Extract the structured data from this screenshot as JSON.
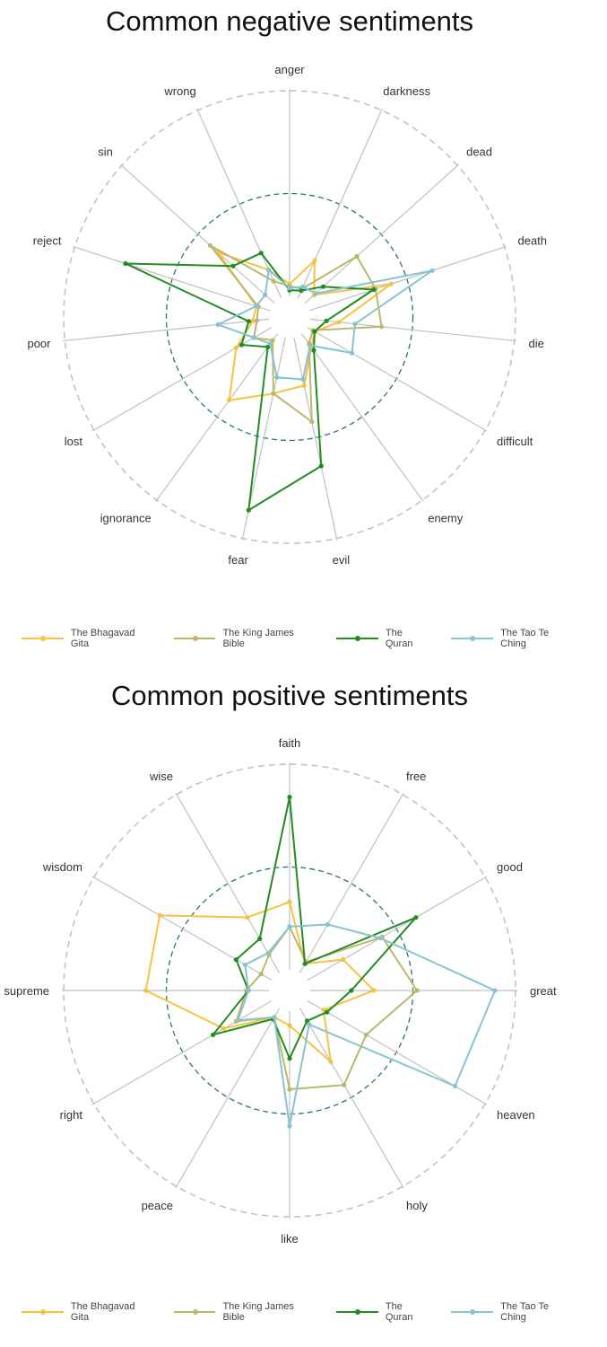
{
  "colors": {
    "The Bhagavad Gita": "#f5c242",
    "The King James Bible": "#bdb76b",
    "The Quran": "#228b22",
    "The Tao Te Ching": "#87c3d0",
    "grid": "#c0c0c0",
    "mean_circle": "#2a7085"
  },
  "chart_data": [
    {
      "type": "radar",
      "title": "Common negative sentiments",
      "categories": [
        "anger",
        "darkness",
        "dead",
        "death",
        "die",
        "difficult",
        "enemy",
        "evil",
        "fear",
        "ignorance",
        "lost",
        "poor",
        "reject",
        "sin",
        "wrong"
      ],
      "rlim": [
        0,
        1
      ],
      "series": [
        {
          "name": "The Bhagavad Gita",
          "values": [
            0.06,
            0.2,
            0.06,
            0.42,
            0.14,
            0.04,
            0.08,
            0.24,
            0.28,
            0.4,
            0.2,
            0.08,
            0.07,
            0.37,
            0.15
          ]
        },
        {
          "name": "The King James Bible",
          "values": [
            0.05,
            0.05,
            0.34,
            0.34,
            0.35,
            0.03,
            0.06,
            0.42,
            0.28,
            0.04,
            0.1,
            0.06,
            0.06,
            0.42,
            0.09
          ]
        },
        {
          "name": "The Quran",
          "values": [
            0.03,
            0.04,
            0.12,
            0.33,
            0.08,
            0.04,
            0.1,
            0.64,
            0.86,
            0.08,
            0.17,
            0.1,
            0.74,
            0.27,
            0.24
          ]
        },
        {
          "name": "The Tao Te Ching",
          "values": [
            0.04,
            0.06,
            0.07,
            0.63,
            0.22,
            0.25,
            0.07,
            0.21,
            0.2,
            0.06,
            0.1,
            0.25,
            0.07,
            0.06,
            0.15
          ]
        }
      ],
      "mean_circle": 0.5,
      "grid": true,
      "legend_position": "bottom"
    },
    {
      "type": "radar",
      "title": "Common positive sentiments",
      "categories": [
        "faith",
        "free",
        "good",
        "great",
        "heaven",
        "holy",
        "like",
        "peace",
        "right",
        "supreme",
        "wisdom",
        "wise"
      ],
      "rlim": [
        0,
        1
      ],
      "series": [
        {
          "name": "The Bhagavad Gita",
          "values": [
            0.33,
            0.05,
            0.2,
            0.31,
            0.09,
            0.3,
            0.07,
            0.05,
            0.27,
            0.6,
            0.63,
            0.31
          ]
        },
        {
          "name": "The King James Bible",
          "values": [
            0.21,
            0.06,
            0.42,
            0.52,
            0.33,
            0.43,
            0.38,
            0.05,
            0.2,
            0.11,
            0.06,
            0.1
          ]
        },
        {
          "name": "The Quran",
          "values": [
            0.84,
            0.05,
            0.61,
            0.2,
            0.11,
            0.07,
            0.23,
            0.06,
            0.33,
            0.1,
            0.2,
            0.19
          ]
        },
        {
          "name": "The Tao Te Ching",
          "values": [
            0.21,
            0.27,
            0.41,
            0.9,
            0.83,
            0.09,
            0.56,
            0.05,
            0.19,
            0.1,
            0.15,
            0.11
          ]
        }
      ],
      "mean_circle": 0.5,
      "grid": true,
      "legend_position": "bottom"
    }
  ]
}
